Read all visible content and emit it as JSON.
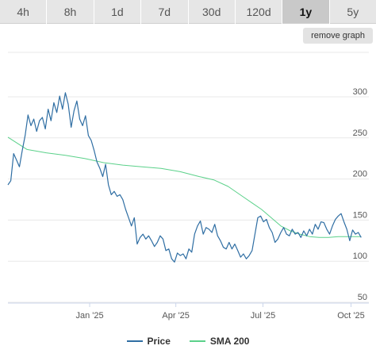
{
  "tabs": [
    {
      "label": "4h",
      "active": false
    },
    {
      "label": "8h",
      "active": false
    },
    {
      "label": "1d",
      "active": false
    },
    {
      "label": "7d",
      "active": false
    },
    {
      "label": "30d",
      "active": false
    },
    {
      "label": "120d",
      "active": false
    },
    {
      "label": "1y",
      "active": true
    },
    {
      "label": "5y",
      "active": false
    }
  ],
  "remove_graph_label": "remove graph",
  "legend": [
    {
      "name": "Price",
      "color": "#2f6ea3"
    },
    {
      "name": "SMA 200",
      "color": "#5bd18a"
    }
  ],
  "chart_data": {
    "type": "line",
    "ylim": [
      50,
      310
    ],
    "y_ticks": [
      300,
      250,
      200,
      150,
      100,
      50
    ],
    "x_tick_labels": [
      {
        "label": "Jan '25",
        "day": 92
      },
      {
        "label": "Apr '25",
        "day": 182
      },
      {
        "label": "Jul '25",
        "day": 273
      },
      {
        "label": "Oct '25",
        "day": 365
      }
    ],
    "x_range": [
      0,
      377
    ],
    "grid": true,
    "legend_position": "bottom",
    "series": [
      {
        "name": "Price",
        "color": "#2f6ea3",
        "points": [
          [
            0,
            190
          ],
          [
            3,
            195
          ],
          [
            6,
            228
          ],
          [
            9,
            220
          ],
          [
            12,
            212
          ],
          [
            15,
            232
          ],
          [
            18,
            250
          ],
          [
            21,
            275
          ],
          [
            24,
            262
          ],
          [
            27,
            270
          ],
          [
            30,
            255
          ],
          [
            33,
            268
          ],
          [
            36,
            272
          ],
          [
            39,
            258
          ],
          [
            42,
            282
          ],
          [
            45,
            268
          ],
          [
            48,
            290
          ],
          [
            51,
            278
          ],
          [
            54,
            298
          ],
          [
            57,
            282
          ],
          [
            60,
            302
          ],
          [
            63,
            288
          ],
          [
            66,
            260
          ],
          [
            69,
            280
          ],
          [
            72,
            292
          ],
          [
            75,
            270
          ],
          [
            78,
            262
          ],
          [
            81,
            274
          ],
          [
            84,
            250
          ],
          [
            87,
            244
          ],
          [
            90,
            232
          ],
          [
            93,
            218
          ],
          [
            96,
            210
          ],
          [
            99,
            200
          ],
          [
            102,
            215
          ],
          [
            105,
            190
          ],
          [
            108,
            178
          ],
          [
            111,
            182
          ],
          [
            114,
            176
          ],
          [
            117,
            178
          ],
          [
            120,
            172
          ],
          [
            123,
            160
          ],
          [
            126,
            150
          ],
          [
            129,
            140
          ],
          [
            132,
            150
          ],
          [
            135,
            118
          ],
          [
            138,
            126
          ],
          [
            141,
            130
          ],
          [
            144,
            124
          ],
          [
            147,
            128
          ],
          [
            150,
            122
          ],
          [
            153,
            115
          ],
          [
            156,
            120
          ],
          [
            159,
            128
          ],
          [
            162,
            124
          ],
          [
            165,
            110
          ],
          [
            168,
            112
          ],
          [
            171,
            100
          ],
          [
            174,
            96
          ],
          [
            177,
            107
          ],
          [
            180,
            104
          ],
          [
            183,
            106
          ],
          [
            186,
            100
          ],
          [
            189,
            112
          ],
          [
            192,
            108
          ],
          [
            195,
            130
          ],
          [
            198,
            140
          ],
          [
            201,
            146
          ],
          [
            204,
            130
          ],
          [
            207,
            138
          ],
          [
            210,
            136
          ],
          [
            213,
            132
          ],
          [
            216,
            142
          ],
          [
            219,
            128
          ],
          [
            222,
            122
          ],
          [
            225,
            114
          ],
          [
            228,
            112
          ],
          [
            231,
            120
          ],
          [
            234,
            112
          ],
          [
            237,
            118
          ],
          [
            240,
            110
          ],
          [
            243,
            102
          ],
          [
            246,
            106
          ],
          [
            249,
            100
          ],
          [
            252,
            104
          ],
          [
            255,
            110
          ],
          [
            258,
            130
          ],
          [
            261,
            150
          ],
          [
            264,
            152
          ],
          [
            267,
            145
          ],
          [
            270,
            148
          ],
          [
            273,
            138
          ],
          [
            276,
            132
          ],
          [
            279,
            120
          ],
          [
            282,
            124
          ],
          [
            285,
            132
          ],
          [
            288,
            138
          ],
          [
            291,
            130
          ],
          [
            294,
            128
          ],
          [
            297,
            136
          ],
          [
            300,
            130
          ],
          [
            303,
            132
          ],
          [
            306,
            126
          ],
          [
            309,
            134
          ],
          [
            312,
            128
          ],
          [
            315,
            136
          ],
          [
            318,
            130
          ],
          [
            321,
            142
          ],
          [
            324,
            136
          ],
          [
            327,
            145
          ],
          [
            330,
            144
          ],
          [
            333,
            136
          ],
          [
            336,
            130
          ],
          [
            339,
            140
          ],
          [
            342,
            148
          ],
          [
            345,
            152
          ],
          [
            348,
            155
          ],
          [
            351,
            145
          ],
          [
            354,
            136
          ],
          [
            357,
            122
          ],
          [
            360,
            135
          ],
          [
            363,
            130
          ],
          [
            366,
            132
          ],
          [
            369,
            126
          ]
        ]
      },
      {
        "name": "SMA 200",
        "color": "#5bd18a",
        "points": [
          [
            0,
            248
          ],
          [
            20,
            233
          ],
          [
            40,
            229
          ],
          [
            60,
            226
          ],
          [
            80,
            222
          ],
          [
            100,
            217
          ],
          [
            120,
            214
          ],
          [
            140,
            212
          ],
          [
            160,
            210
          ],
          [
            180,
            206
          ],
          [
            200,
            200
          ],
          [
            215,
            196
          ],
          [
            230,
            188
          ],
          [
            245,
            176
          ],
          [
            255,
            168
          ],
          [
            265,
            160
          ],
          [
            275,
            150
          ],
          [
            285,
            140
          ],
          [
            295,
            134
          ],
          [
            305,
            130
          ],
          [
            315,
            127
          ],
          [
            325,
            126
          ],
          [
            335,
            126
          ],
          [
            345,
            127
          ],
          [
            355,
            127
          ],
          [
            369,
            127
          ]
        ]
      }
    ]
  }
}
